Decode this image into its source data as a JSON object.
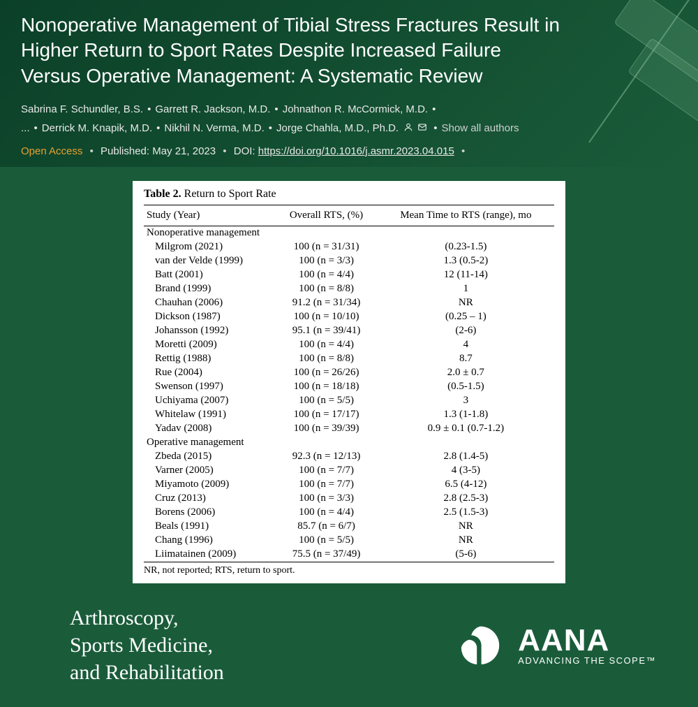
{
  "colors": {
    "background": "#1a5c3a",
    "header_bg_start": "#0b4028",
    "header_bg_end": "#1a5c3a",
    "title_color": "#ffffff",
    "author_color": "#e8e8e8",
    "open_access_color": "#e8a030",
    "table_bg": "#ffffff",
    "table_text": "#000000"
  },
  "header": {
    "title": "Nonoperative Management of Tibial Stress Fractures Result in Higher Return to Sport Rates Despite Increased Failure Versus Operative Management: A Systematic Review",
    "authors": [
      "Sabrina F. Schundler, B.S.",
      "Garrett R. Jackson, M.D.",
      "Johnathon R. McCormick, M.D.",
      "...",
      "Derrick M. Knapik, M.D.",
      "Nikhil N. Verma, M.D.",
      "Jorge Chahla, M.D., Ph.D."
    ],
    "show_all_label": "Show all authors",
    "open_access_label": "Open Access",
    "published_label": "Published: May 21, 2023",
    "doi_label": "DOI:",
    "doi_value": "https://doi.org/10.1016/j.asmr.2023.04.015"
  },
  "table": {
    "caption_bold": "Table 2.",
    "caption_rest": " Return to Sport Rate",
    "columns": [
      "Study (Year)",
      "Overall RTS, (%)",
      "Mean Time to RTS (range), mo"
    ],
    "sections": [
      {
        "label": "Nonoperative management",
        "rows": [
          {
            "study": "Milgrom (2021)",
            "rts": "100 (n = 31/31)",
            "time": "(0.23-1.5)"
          },
          {
            "study": "van der Velde (1999)",
            "rts": "100 (n = 3/3)",
            "time": "1.3 (0.5-2)"
          },
          {
            "study": "Batt (2001)",
            "rts": "100 (n = 4/4)",
            "time": "12 (11-14)"
          },
          {
            "study": "Brand (1999)",
            "rts": "100 (n = 8/8)",
            "time": "1"
          },
          {
            "study": "Chauhan (2006)",
            "rts": "91.2 (n = 31/34)",
            "time": "NR"
          },
          {
            "study": "Dickson (1987)",
            "rts": "100 (n = 10/10)",
            "time": "(0.25 – 1)"
          },
          {
            "study": "Johansson (1992)",
            "rts": "95.1 (n = 39/41)",
            "time": "(2-6)"
          },
          {
            "study": "Moretti (2009)",
            "rts": "100 (n = 4/4)",
            "time": "4"
          },
          {
            "study": "Rettig (1988)",
            "rts": "100 (n = 8/8)",
            "time": "8.7"
          },
          {
            "study": "Rue (2004)",
            "rts": "100 (n = 26/26)",
            "time": "2.0 ± 0.7"
          },
          {
            "study": "Swenson (1997)",
            "rts": "100 (n = 18/18)",
            "time": "(0.5-1.5)"
          },
          {
            "study": "Uchiyama (2007)",
            "rts": "100 (n = 5/5)",
            "time": "3"
          },
          {
            "study": "Whitelaw (1991)",
            "rts": "100 (n = 17/17)",
            "time": "1.3 (1-1.8)"
          },
          {
            "study": "Yadav (2008)",
            "rts": "100 (n = 39/39)",
            "time": "0.9 ± 0.1 (0.7-1.2)"
          }
        ]
      },
      {
        "label": "Operative management",
        "rows": [
          {
            "study": "Zbeda (2015)",
            "rts": "92.3 (n = 12/13)",
            "time": "2.8 (1.4-5)"
          },
          {
            "study": "Varner (2005)",
            "rts": "100 (n = 7/7)",
            "time": "4 (3-5)"
          },
          {
            "study": "Miyamoto (2009)",
            "rts": "100 (n = 7/7)",
            "time": "6.5 (4-12)"
          },
          {
            "study": "Cruz (2013)",
            "rts": "100 (n = 3/3)",
            "time": "2.8 (2.5-3)"
          },
          {
            "study": "Borens (2006)",
            "rts": "100 (n = 4/4)",
            "time": "2.5 (1.5-3)"
          },
          {
            "study": "Beals (1991)",
            "rts": "85.7 (n = 6/7)",
            "time": "NR"
          },
          {
            "study": "Chang (1996)",
            "rts": "100 (n = 5/5)",
            "time": "NR"
          },
          {
            "study": "Liimatainen (2009)",
            "rts": "75.5 (n = 37/49)",
            "time": "(5-6)"
          }
        ]
      }
    ],
    "footer": "NR, not reported; RTS, return to sport."
  },
  "footer": {
    "journal": "Arthroscopy,\nSports Medicine,\nand Rehabilitation",
    "aana_name": "AANA",
    "aana_tagline": "ADVANCING THE SCOPE™"
  }
}
